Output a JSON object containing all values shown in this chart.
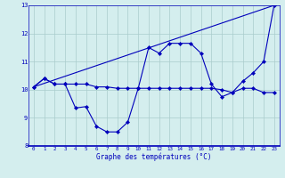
{
  "xlabel": "Graphe des températures (°C)",
  "background_color": "#d4eeee",
  "line_color": "#0000bb",
  "grid_color": "#aacccc",
  "xlim": [
    -0.5,
    23.5
  ],
  "ylim": [
    8,
    13
  ],
  "yticks": [
    8,
    9,
    10,
    11,
    12,
    13
  ],
  "xticks": [
    0,
    1,
    2,
    3,
    4,
    5,
    6,
    7,
    8,
    9,
    10,
    11,
    12,
    13,
    14,
    15,
    16,
    17,
    18,
    19,
    20,
    21,
    22,
    23
  ],
  "line1_x": [
    0,
    1,
    2,
    3,
    4,
    5,
    6,
    7,
    8,
    9,
    10,
    11,
    12,
    13,
    14,
    15,
    16,
    17,
    18,
    19,
    20,
    21,
    22,
    23
  ],
  "line1_y": [
    10.1,
    10.4,
    10.2,
    10.2,
    9.35,
    9.4,
    8.7,
    8.5,
    8.5,
    8.85,
    10.05,
    11.5,
    11.3,
    11.65,
    11.65,
    11.65,
    11.3,
    10.2,
    9.75,
    9.9,
    10.3,
    10.6,
    11.0,
    13.0
  ],
  "line2_x": [
    0,
    1,
    2,
    3,
    4,
    5,
    6,
    7,
    8,
    9,
    10,
    11,
    12,
    13,
    14,
    15,
    16,
    17,
    18,
    19,
    20,
    21,
    22,
    23
  ],
  "line2_y": [
    10.1,
    10.4,
    10.2,
    10.2,
    10.2,
    10.2,
    10.1,
    10.1,
    10.05,
    10.05,
    10.05,
    10.05,
    10.05,
    10.05,
    10.05,
    10.05,
    10.05,
    10.05,
    10.0,
    9.9,
    10.05,
    10.05,
    9.9,
    9.9
  ],
  "line3_x": [
    0,
    23
  ],
  "line3_y": [
    10.1,
    13.0
  ]
}
